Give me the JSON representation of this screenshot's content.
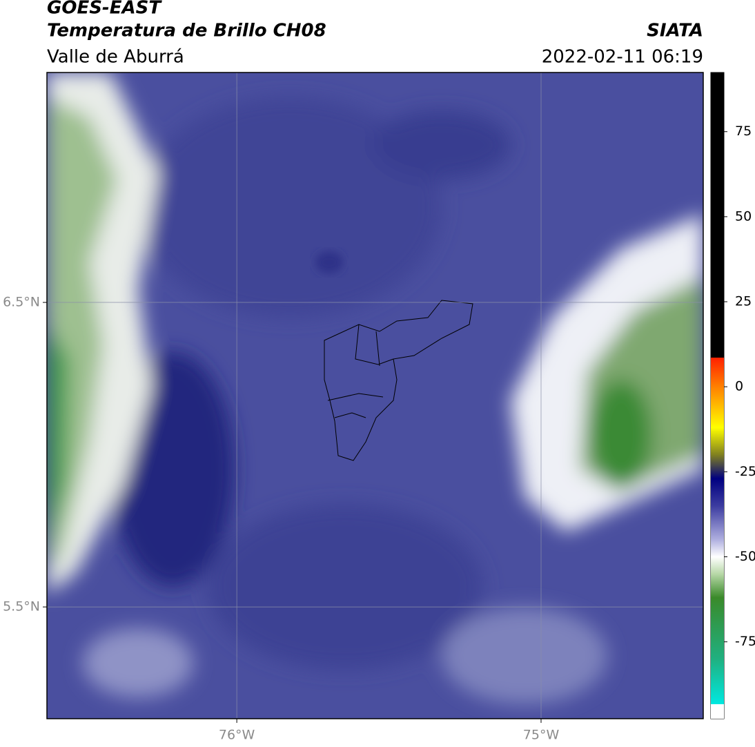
{
  "header": {
    "source": "GOES-EAST",
    "title": "Temperatura de Brillo CH08",
    "region": "Valle de Aburrá",
    "agency": "SIATA",
    "datetime": "2022-02-11 06:19"
  },
  "map": {
    "xlim": [
      -76.624,
      -74.467
    ],
    "ylim": [
      5.133,
      7.255
    ],
    "xticks": [
      {
        "value": -76,
        "label": "76°W"
      },
      {
        "value": -75,
        "label": "75°W"
      }
    ],
    "yticks": [
      {
        "value": 6.5,
        "label": "6.5°N"
      },
      {
        "value": 5.5,
        "label": "5.5°N"
      }
    ],
    "grid": true
  },
  "colorbar": {
    "lim": [
      -97.6,
      92.4
    ],
    "ticks": [
      75,
      50,
      25,
      0,
      -25,
      -50,
      -75
    ],
    "stops": [
      {
        "value": 92.4,
        "color": "#000000"
      },
      {
        "value": 8.6,
        "color": "#000000"
      },
      {
        "value": 8.6,
        "color": "#ff2000"
      },
      {
        "value": 0,
        "color": "#ff8000"
      },
      {
        "value": -12,
        "color": "#ffff00"
      },
      {
        "value": -20,
        "color": "#808020"
      },
      {
        "value": -27,
        "color": "#000080"
      },
      {
        "value": -35,
        "color": "#3c3ca0"
      },
      {
        "value": -45,
        "color": "#b0b0e0"
      },
      {
        "value": -50,
        "color": "#ffffff"
      },
      {
        "value": -55,
        "color": "#b8d8a8"
      },
      {
        "value": -62,
        "color": "#3a8a2a"
      },
      {
        "value": -80,
        "color": "#20b080"
      },
      {
        "value": -93.3,
        "color": "#00e8e0"
      },
      {
        "value": -93.3,
        "color": "#ffffff"
      },
      {
        "value": -97.6,
        "color": "#ffffff"
      }
    ]
  }
}
